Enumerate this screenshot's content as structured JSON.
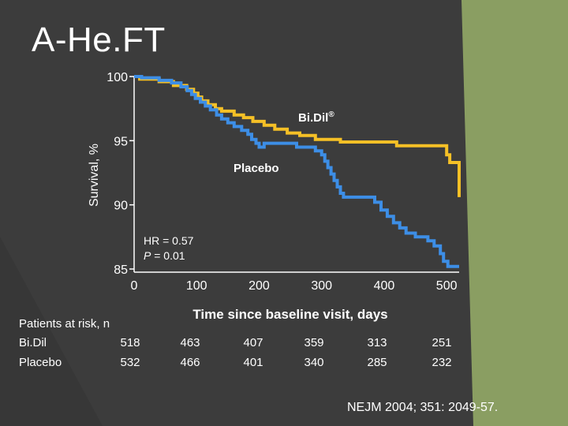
{
  "slide": {
    "title": "A-He.FT",
    "citation": "NEJM 2004; 351: 2049-57."
  },
  "colors": {
    "background": "#3c3c3c",
    "accent_green": "#8a9e62",
    "bidil": "#f5c026",
    "placebo": "#3d8ee6",
    "axis": "#ffffff"
  },
  "chart_data": {
    "type": "line",
    "title": "",
    "xlabel": "Time since baseline visit, days",
    "ylabel": "Survival, %",
    "xlim": [
      0,
      520
    ],
    "ylim": [
      85,
      100
    ],
    "x_ticks": [
      "0",
      "100",
      "200",
      "300",
      "400",
      "500"
    ],
    "x_tick_values": [
      0,
      100,
      200,
      300,
      400,
      500
    ],
    "y_ticks": [
      "100",
      "95",
      "90",
      "85"
    ],
    "y_tick_values": [
      100,
      95,
      90,
      85
    ],
    "series": [
      {
        "name": "Bi.Dil®",
        "label_main": "Bi.Dil",
        "label_sup": "®",
        "color": "#f5c026",
        "points": [
          [
            0,
            100
          ],
          [
            9,
            100
          ],
          [
            9,
            99.8
          ],
          [
            40,
            99.8
          ],
          [
            40,
            99.6
          ],
          [
            63,
            99.6
          ],
          [
            63,
            99.3
          ],
          [
            84,
            99.3
          ],
          [
            84,
            99.0
          ],
          [
            95,
            99.0
          ],
          [
            95,
            98.7
          ],
          [
            102,
            98.7
          ],
          [
            102,
            98.4
          ],
          [
            108,
            98.4
          ],
          [
            108,
            98.1
          ],
          [
            118,
            98.1
          ],
          [
            118,
            97.8
          ],
          [
            130,
            97.8
          ],
          [
            130,
            97.5
          ],
          [
            140,
            97.5
          ],
          [
            140,
            97.3
          ],
          [
            160,
            97.3
          ],
          [
            160,
            97.0
          ],
          [
            175,
            97.0
          ],
          [
            175,
            96.8
          ],
          [
            190,
            96.8
          ],
          [
            190,
            96.5
          ],
          [
            208,
            96.5
          ],
          [
            208,
            96.2
          ],
          [
            225,
            96.2
          ],
          [
            225,
            95.9
          ],
          [
            245,
            95.9
          ],
          [
            245,
            95.6
          ],
          [
            265,
            95.6
          ],
          [
            265,
            95.4
          ],
          [
            290,
            95.4
          ],
          [
            290,
            95.1
          ],
          [
            330,
            95.1
          ],
          [
            330,
            94.9
          ],
          [
            420,
            94.9
          ],
          [
            420,
            94.6
          ],
          [
            500,
            94.6
          ],
          [
            500,
            93.9
          ],
          [
            505,
            93.9
          ],
          [
            505,
            93.3
          ],
          [
            520,
            93.3
          ],
          [
            520,
            90.6
          ]
        ]
      },
      {
        "name": "Placebo",
        "color": "#3d8ee6",
        "points": [
          [
            0,
            100
          ],
          [
            12,
            100
          ],
          [
            12,
            99.9
          ],
          [
            40,
            99.9
          ],
          [
            40,
            99.7
          ],
          [
            60,
            99.7
          ],
          [
            60,
            99.5
          ],
          [
            75,
            99.5
          ],
          [
            75,
            99.2
          ],
          [
            85,
            99.2
          ],
          [
            85,
            98.9
          ],
          [
            92,
            98.9
          ],
          [
            92,
            98.6
          ],
          [
            98,
            98.6
          ],
          [
            98,
            98.3
          ],
          [
            106,
            98.3
          ],
          [
            106,
            98.0
          ],
          [
            114,
            98.0
          ],
          [
            114,
            97.7
          ],
          [
            122,
            97.7
          ],
          [
            122,
            97.4
          ],
          [
            132,
            97.4
          ],
          [
            132,
            97.0
          ],
          [
            140,
            97.0
          ],
          [
            140,
            96.7
          ],
          [
            150,
            96.7
          ],
          [
            150,
            96.4
          ],
          [
            160,
            96.4
          ],
          [
            160,
            96.1
          ],
          [
            172,
            96.1
          ],
          [
            172,
            95.8
          ],
          [
            182,
            95.8
          ],
          [
            182,
            95.5
          ],
          [
            188,
            95.5
          ],
          [
            188,
            95.1
          ],
          [
            195,
            95.1
          ],
          [
            195,
            94.8
          ],
          [
            200,
            94.8
          ],
          [
            200,
            94.5
          ],
          [
            208,
            94.5
          ],
          [
            208,
            94.8
          ],
          [
            260,
            94.8
          ],
          [
            260,
            94.5
          ],
          [
            290,
            94.5
          ],
          [
            290,
            94.2
          ],
          [
            300,
            94.2
          ],
          [
            300,
            93.9
          ],
          [
            305,
            93.9
          ],
          [
            305,
            93.4
          ],
          [
            310,
            93.4
          ],
          [
            310,
            92.9
          ],
          [
            315,
            92.9
          ],
          [
            315,
            92.4
          ],
          [
            320,
            92.4
          ],
          [
            320,
            91.9
          ],
          [
            325,
            91.9
          ],
          [
            325,
            91.4
          ],
          [
            330,
            91.4
          ],
          [
            330,
            90.9
          ],
          [
            335,
            90.9
          ],
          [
            335,
            90.6
          ],
          [
            385,
            90.6
          ],
          [
            385,
            90.2
          ],
          [
            395,
            90.2
          ],
          [
            395,
            89.6
          ],
          [
            405,
            89.6
          ],
          [
            405,
            89.1
          ],
          [
            415,
            89.1
          ],
          [
            415,
            88.6
          ],
          [
            425,
            88.6
          ],
          [
            425,
            88.2
          ],
          [
            435,
            88.2
          ],
          [
            435,
            87.8
          ],
          [
            450,
            87.8
          ],
          [
            450,
            87.5
          ],
          [
            470,
            87.5
          ],
          [
            470,
            87.2
          ],
          [
            480,
            87.2
          ],
          [
            480,
            86.8
          ],
          [
            490,
            86.8
          ],
          [
            490,
            86.2
          ],
          [
            495,
            86.2
          ],
          [
            495,
            85.6
          ],
          [
            502,
            85.6
          ],
          [
            502,
            85.2
          ],
          [
            520,
            85.2
          ]
        ]
      }
    ],
    "annotations": {
      "hr_text": "HR = 0.57",
      "p_label": "P",
      "p_value": " = 0.01"
    }
  },
  "risk_table": {
    "title": "Patients at risk, n",
    "rows": [
      {
        "label": "Bi.Dil",
        "values": [
          "518",
          "463",
          "407",
          "359",
          "313",
          "251"
        ]
      },
      {
        "label": "Placebo",
        "values": [
          "532",
          "466",
          "401",
          "340",
          "285",
          "232"
        ]
      }
    ]
  }
}
